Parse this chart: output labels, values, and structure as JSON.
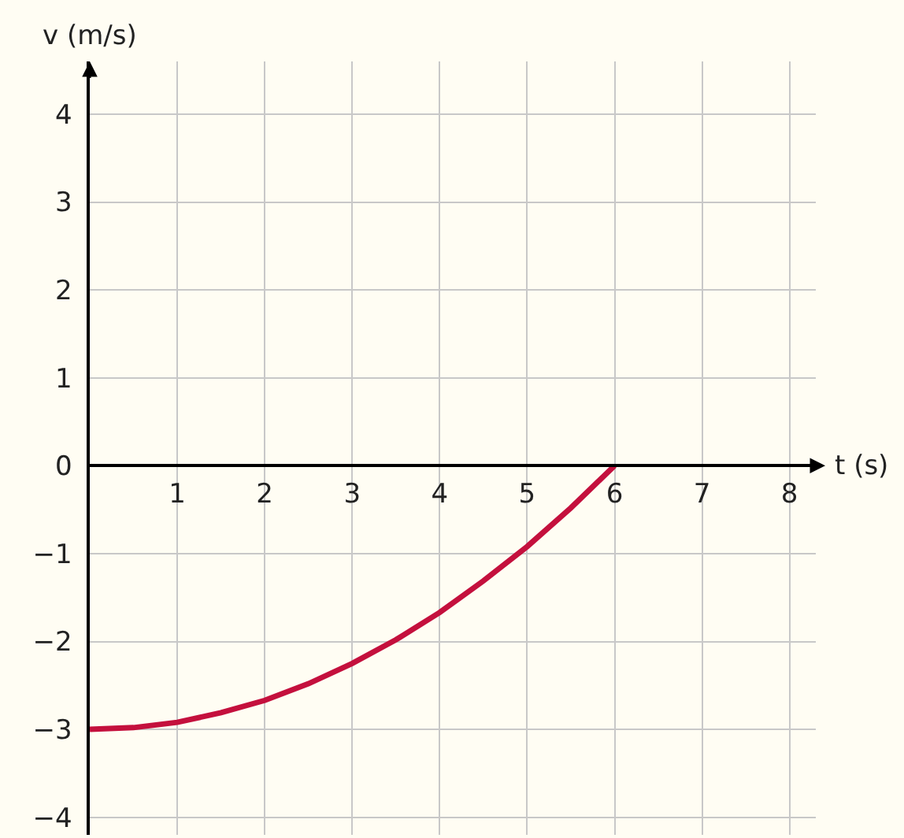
{
  "chart_data": {
    "type": "line",
    "xlabel": "t (s)",
    "ylabel": "v (m/s)",
    "x": [
      0,
      0.5,
      1,
      1.5,
      2,
      2.5,
      3,
      3.5,
      4,
      4.5,
      5,
      5.5,
      6
    ],
    "series": [
      {
        "color": "#c4103d",
        "values": [
          -3,
          -2.98,
          -2.92,
          -2.81,
          -2.67,
          -2.48,
          -2.25,
          -1.98,
          -1.67,
          -1.31,
          -0.92,
          -0.48,
          0
        ]
      }
    ],
    "xlim": [
      0,
      8.3
    ],
    "ylim": [
      -4.2,
      4.6
    ],
    "xticks": [
      1,
      2,
      3,
      4,
      5,
      6,
      7,
      8
    ],
    "yticks": [
      {
        "value": -4,
        "label": "−4"
      },
      {
        "value": -3,
        "label": "−3"
      },
      {
        "value": -2,
        "label": "−2"
      },
      {
        "value": -1,
        "label": "−1"
      },
      0,
      1,
      2,
      3,
      4
    ],
    "grid": true,
    "marker": "none",
    "line_style": "solid"
  }
}
